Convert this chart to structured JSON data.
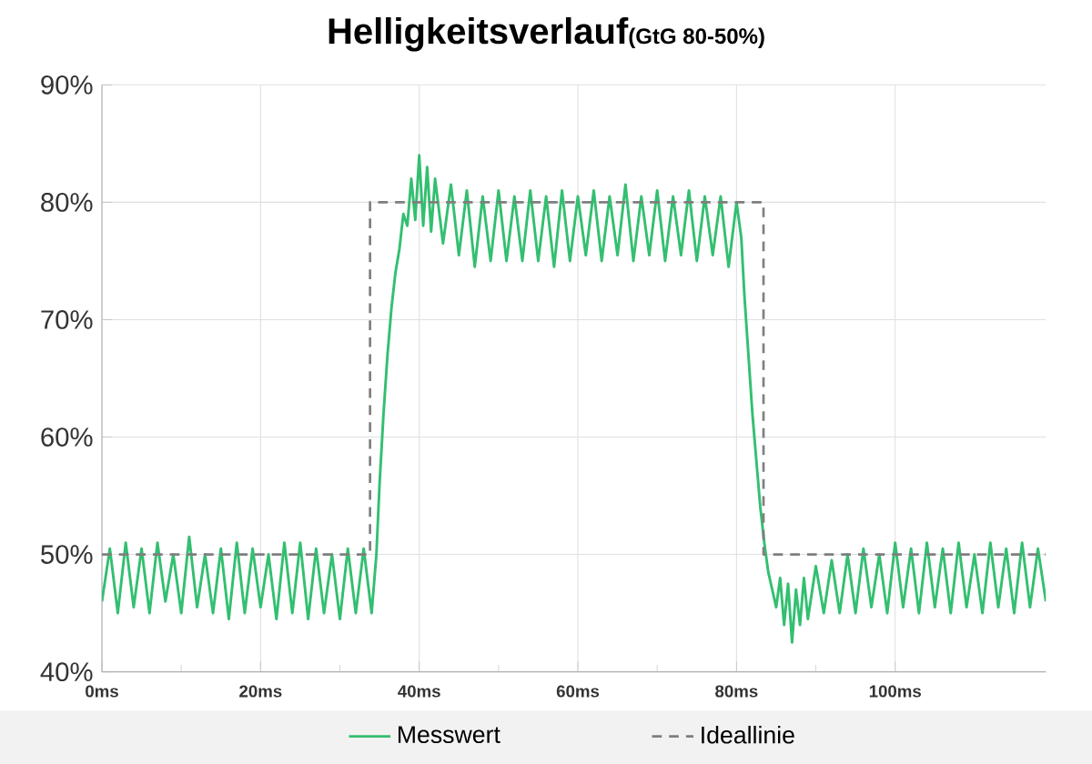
{
  "chart_data": {
    "type": "line",
    "title": "Helligkeitsverlauf",
    "subtitle": "(GtG 80-50%)",
    "xlim": [
      0,
      119
    ],
    "ylim": [
      40,
      90
    ],
    "xticks": [
      {
        "value": 0,
        "label": "0ms"
      },
      {
        "value": 20,
        "label": "20ms"
      },
      {
        "value": 40,
        "label": "40ms"
      },
      {
        "value": 60,
        "label": "60ms"
      },
      {
        "value": 80,
        "label": "80ms"
      },
      {
        "value": 100,
        "label": "100ms"
      }
    ],
    "yticks": [
      {
        "value": 40,
        "label": "40%"
      },
      {
        "value": 50,
        "label": "50%"
      },
      {
        "value": 60,
        "label": "60%"
      },
      {
        "value": 70,
        "label": "70%"
      },
      {
        "value": 80,
        "label": "80%"
      },
      {
        "value": 90,
        "label": "90%"
      }
    ],
    "grid": true,
    "legend": "bottom",
    "marker": "none",
    "series": [
      {
        "name": "Messwert",
        "color": "#33bf70",
        "line_style": "solid",
        "x": [
          0,
          1,
          2,
          3,
          4,
          5,
          6,
          7,
          8,
          9,
          10,
          11,
          12,
          13,
          14,
          15,
          16,
          17,
          18,
          19,
          20,
          21,
          22,
          23,
          24,
          25,
          26,
          27,
          28,
          29,
          30,
          31,
          32,
          33,
          34,
          34.6,
          35,
          35.5,
          36,
          36.5,
          37,
          37.5,
          38,
          38.5,
          39,
          39.5,
          40,
          40.5,
          41,
          41.5,
          42,
          43,
          44,
          45,
          46,
          47,
          48,
          49,
          50,
          51,
          52,
          53,
          54,
          55,
          56,
          57,
          58,
          59,
          60,
          61,
          62,
          63,
          64,
          65,
          66,
          67,
          68,
          69,
          70,
          71,
          72,
          73,
          74,
          75,
          76,
          77,
          78,
          79,
          80,
          80.6,
          81,
          81.5,
          82,
          82.5,
          83,
          83.5,
          84,
          84.5,
          85,
          85.5,
          86,
          86.5,
          87,
          87.5,
          88,
          88.5,
          89,
          90,
          91,
          92,
          93,
          94,
          95,
          96,
          97,
          98,
          99,
          100,
          101,
          102,
          103,
          104,
          105,
          106,
          107,
          108,
          109,
          110,
          111,
          112,
          113,
          114,
          115,
          116,
          117,
          118,
          119
        ],
        "values": [
          46,
          50.5,
          45,
          51,
          45.5,
          50.5,
          45,
          51,
          46,
          50,
          45,
          51.5,
          45.5,
          50,
          45,
          50.5,
          44.5,
          51,
          45,
          50.5,
          45.5,
          50,
          44.5,
          51,
          45,
          51,
          44.5,
          50.5,
          45,
          50,
          44.5,
          50.5,
          45,
          50.5,
          45,
          50,
          56,
          62,
          67,
          71,
          74,
          76,
          79,
          78,
          82,
          78.5,
          84,
          78,
          83,
          77.5,
          82,
          76.5,
          81.5,
          75.5,
          81,
          74.5,
          80.5,
          75,
          81,
          75,
          80.5,
          75,
          81,
          75,
          80.5,
          74.5,
          81,
          75,
          80.5,
          75.5,
          81,
          75,
          80.5,
          75.5,
          81.5,
          75,
          80.5,
          75.5,
          81,
          75,
          80.5,
          75.5,
          81,
          75,
          80.5,
          75.5,
          80.5,
          74.5,
          80,
          77,
          72,
          67,
          62,
          58,
          54,
          51,
          48.5,
          47,
          45.5,
          48,
          44,
          47.5,
          42.5,
          47,
          44,
          48,
          44.5,
          49,
          45,
          49.5,
          45,
          50,
          45,
          50.5,
          45.5,
          50,
          45,
          51,
          45.5,
          50.5,
          45,
          51,
          45.5,
          50.5,
          45,
          51,
          45.5,
          50,
          45,
          51,
          45.5,
          50.5,
          45,
          51,
          45.5,
          50.5,
          46
        ]
      },
      {
        "name": "Ideallinie",
        "color": "#7f7f7f",
        "line_style": "dashed",
        "x": [
          0,
          33.8,
          33.8,
          83.4,
          83.4,
          119
        ],
        "values": [
          50,
          50,
          80,
          80,
          50,
          50
        ]
      }
    ]
  }
}
